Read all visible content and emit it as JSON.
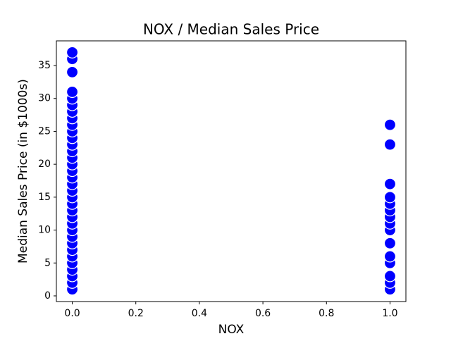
{
  "chart_data": {
    "type": "scatter",
    "title": "NOX / Median Sales Price",
    "x_label": "NOX",
    "y_label": "Median Sales Price (in $1000s)",
    "color": "#0000ff",
    "x": [
      0,
      0,
      0,
      0,
      0,
      0,
      0,
      0,
      0,
      0,
      0,
      0,
      0,
      0,
      0,
      0,
      0,
      0,
      0,
      0,
      0,
      0,
      0,
      0,
      0,
      0,
      0,
      0,
      0,
      0,
      0,
      0,
      0,
      0,
      1,
      1,
      1,
      1,
      1,
      1,
      1,
      1,
      1,
      1,
      1,
      1,
      1,
      1,
      1
    ],
    "values": [
      1,
      2,
      3,
      4,
      5,
      6,
      7,
      8,
      9,
      10,
      11,
      12,
      13,
      14,
      15,
      16,
      17,
      18,
      19,
      20,
      21,
      22,
      23,
      24,
      25,
      26,
      27,
      28,
      29,
      30,
      31,
      34,
      36,
      37,
      1,
      2,
      3,
      5,
      6,
      8,
      10,
      11,
      12,
      13,
      14,
      15,
      17,
      23,
      26
    ],
    "xlim": [
      -0.05,
      1.05
    ],
    "ylim": [
      -0.86,
      38.75
    ],
    "xticks": [
      {
        "value": 0,
        "label": "0.0"
      },
      {
        "value": 0.2,
        "label": "0.2"
      },
      {
        "value": 0.4,
        "label": "0.4"
      },
      {
        "value": 0.6,
        "label": "0.6"
      },
      {
        "value": 0.8,
        "label": "0.8"
      },
      {
        "value": 1,
        "label": "1.0"
      }
    ],
    "yticks": [
      0,
      5,
      10,
      15,
      20,
      25,
      30,
      35
    ]
  }
}
